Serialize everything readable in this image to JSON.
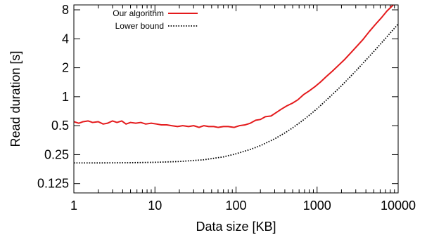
{
  "chart_data": {
    "type": "line",
    "xlabel": "Data size [KB]",
    "ylabel": "Read duration [s]",
    "x_scale": "log",
    "y_scale": "log",
    "xlim": [
      1,
      10000
    ],
    "ylim": [
      0.1,
      9.0
    ],
    "x_ticks": [
      {
        "value": 1,
        "label": "1"
      },
      {
        "value": 10,
        "label": "10"
      },
      {
        "value": 100,
        "label": "100"
      },
      {
        "value": 1000,
        "label": "1000"
      },
      {
        "value": 10000,
        "label": "10000"
      }
    ],
    "y_ticks": [
      {
        "value": 0.125,
        "label": "0.125"
      },
      {
        "value": 0.25,
        "label": "0.25"
      },
      {
        "value": 0.5,
        "label": "0.5"
      },
      {
        "value": 1,
        "label": "1"
      },
      {
        "value": 2,
        "label": "2"
      },
      {
        "value": 4,
        "label": "4"
      },
      {
        "value": 8,
        "label": "8"
      }
    ],
    "grid": false,
    "legend_position": "top-left",
    "series": [
      {
        "name": "Our algorithm",
        "color": "#e41a1c",
        "style": "solid",
        "points": [
          [
            1,
            0.55
          ],
          [
            1.15,
            0.53
          ],
          [
            1.3,
            0.55
          ],
          [
            1.5,
            0.56
          ],
          [
            1.7,
            0.54
          ],
          [
            2,
            0.55
          ],
          [
            2.3,
            0.52
          ],
          [
            2.6,
            0.53
          ],
          [
            3,
            0.56
          ],
          [
            3.4,
            0.54
          ],
          [
            3.9,
            0.56
          ],
          [
            4.4,
            0.52
          ],
          [
            5,
            0.54
          ],
          [
            5.8,
            0.53
          ],
          [
            6.7,
            0.54
          ],
          [
            7.7,
            0.52
          ],
          [
            9,
            0.53
          ],
          [
            10.5,
            0.52
          ],
          [
            12,
            0.51
          ],
          [
            14,
            0.51
          ],
          [
            16,
            0.5
          ],
          [
            19,
            0.49
          ],
          [
            22,
            0.5
          ],
          [
            26,
            0.49
          ],
          [
            30,
            0.5
          ],
          [
            35,
            0.48
          ],
          [
            40,
            0.5
          ],
          [
            46,
            0.49
          ],
          [
            53,
            0.49
          ],
          [
            60,
            0.48
          ],
          [
            70,
            0.49
          ],
          [
            80,
            0.49
          ],
          [
            95,
            0.48
          ],
          [
            110,
            0.5
          ],
          [
            130,
            0.51
          ],
          [
            150,
            0.53
          ],
          [
            175,
            0.57
          ],
          [
            200,
            0.58
          ],
          [
            230,
            0.62
          ],
          [
            270,
            0.63
          ],
          [
            310,
            0.68
          ],
          [
            360,
            0.74
          ],
          [
            420,
            0.8
          ],
          [
            500,
            0.86
          ],
          [
            580,
            0.93
          ],
          [
            680,
            1.05
          ],
          [
            800,
            1.15
          ],
          [
            950,
            1.28
          ],
          [
            1100,
            1.42
          ],
          [
            1300,
            1.62
          ],
          [
            1550,
            1.85
          ],
          [
            1850,
            2.13
          ],
          [
            2200,
            2.45
          ],
          [
            2600,
            2.85
          ],
          [
            3100,
            3.35
          ],
          [
            3700,
            3.95
          ],
          [
            4400,
            4.75
          ],
          [
            5200,
            5.6
          ],
          [
            6200,
            6.6
          ],
          [
            7300,
            7.8
          ],
          [
            8700,
            9.0
          ]
        ]
      },
      {
        "name": "Lower bound",
        "color": "#000000",
        "style": "dotted",
        "points": [
          [
            1,
            0.205
          ],
          [
            2,
            0.205
          ],
          [
            5,
            0.206
          ],
          [
            10,
            0.208
          ],
          [
            20,
            0.212
          ],
          [
            40,
            0.221
          ],
          [
            70,
            0.237
          ],
          [
            100,
            0.255
          ],
          [
            150,
            0.283
          ],
          [
            200,
            0.31
          ],
          [
            300,
            0.365
          ],
          [
            400,
            0.42
          ],
          [
            500,
            0.475
          ],
          [
            700,
            0.585
          ],
          [
            1000,
            0.75
          ],
          [
            1500,
            1.03
          ],
          [
            2000,
            1.3
          ],
          [
            3000,
            1.85
          ],
          [
            4000,
            2.4
          ],
          [
            5000,
            2.95
          ],
          [
            6000,
            3.5
          ],
          [
            7000,
            4.05
          ],
          [
            8000,
            4.6
          ],
          [
            10000,
            5.7
          ]
        ]
      }
    ]
  }
}
